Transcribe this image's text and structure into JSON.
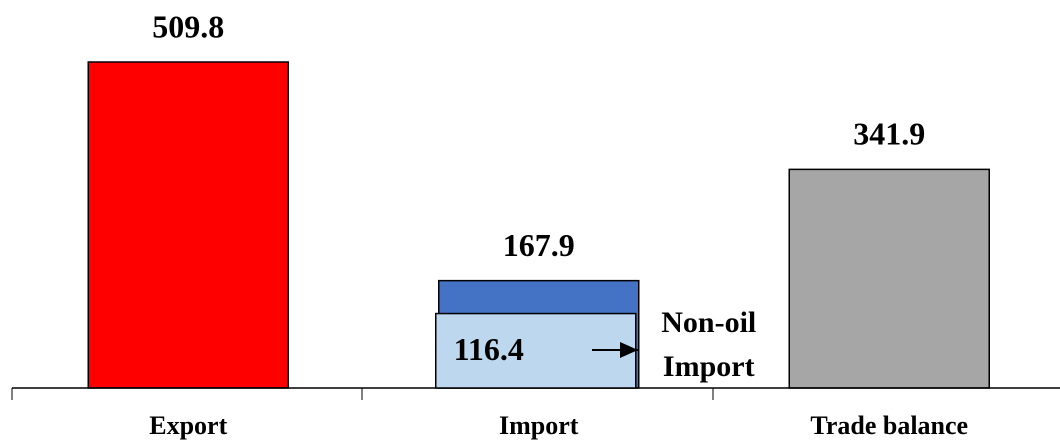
{
  "chart_data": {
    "type": "bar",
    "categories": [
      "Export",
      "Import",
      "Trade balance"
    ],
    "values": [
      509.8,
      167.9,
      341.9
    ],
    "colors": [
      "#ff0000",
      "#4472c4",
      "#a6a6a6"
    ],
    "overlay": {
      "label_lines": [
        "Non-oil",
        "Import"
      ],
      "values": [
        null,
        116.4,
        null
      ],
      "color": "#bdd7ee"
    }
  }
}
